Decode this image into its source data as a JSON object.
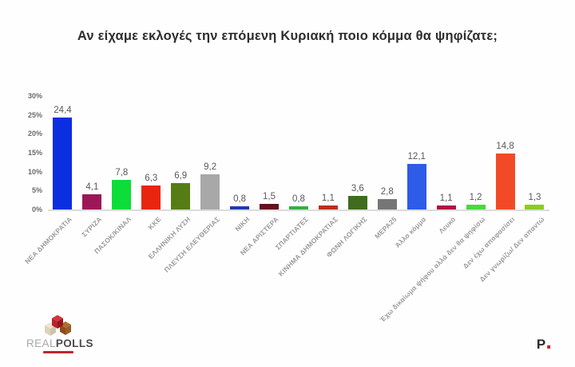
{
  "chart_data": {
    "type": "bar",
    "title": "Αν είχαμε εκλογές την επόμενη Κυριακή ποιο κόμμα θα ψηφίζατε;",
    "xlabel": "",
    "ylabel": "",
    "ylim": [
      0,
      30
    ],
    "grid": false,
    "legend": "none",
    "ytick_labels": [
      "0%",
      "5%",
      "10%",
      "15%",
      "20%",
      "25%",
      "30%"
    ],
    "categories": [
      "ΝΕΑ ΔΗΜΟΚΡΑΤΙΑ",
      "ΣΥΡΙΖΑ",
      "ΠΑΣΟΚ/ΚΙΝΑΛ",
      "ΚΚΕ",
      "ΕΛΛΗΝΙΚΗ ΛΥΣΗ",
      "ΠΛΕΥΣΗ ΕΛΕΥΘΕΡΙΑΣ",
      "ΝΙΚΗ",
      "ΝΕΑ ΑΡΙΣΤΕΡΑ",
      "ΣΠΑΡΤΙΑΤΕΣ",
      "ΚΙΝΗΜΑ ΔΗΜΟΚΡΑΤΙΑΣ",
      "ΦΩΝΗ ΛΟΓΙΚΗΣ",
      "ΜΕΡΑ25",
      "Άλλο κόμμα",
      "Λευκό",
      "Έχω δικαίωμα ψήφου αλλά δεν θα ψηφίσω",
      "Δεν έχω αποφασίσει",
      "Δεν γνωρίζω/ Δεν απαντώ"
    ],
    "values": [
      24.4,
      4.1,
      7.8,
      6.3,
      6.9,
      9.2,
      0.8,
      1.5,
      0.8,
      1.1,
      3.6,
      2.8,
      12.1,
      1.1,
      1.2,
      14.8,
      1.3
    ],
    "value_labels": [
      "24,4",
      "4,1",
      "7,8",
      "6,3",
      "6,9",
      "9,2",
      "0,8",
      "1,5",
      "0,8",
      "1,1",
      "3,6",
      "2,8",
      "12,1",
      "1,1",
      "1,2",
      "14,8",
      "1,3"
    ],
    "bar_colors": [
      "#0b2fe0",
      "#9c1757",
      "#0ddd38",
      "#e8250e",
      "#567d15",
      "#a8a8a8",
      "#2038b0",
      "#66101f",
      "#35ad45",
      "#bf2e1c",
      "#3f6d1d",
      "#767676",
      "#2e5be8",
      "#b01340",
      "#47d93c",
      "#f24a26",
      "#8ccc1f"
    ]
  },
  "branding": {
    "logo_real": "REAL",
    "logo_polls": "POLLS",
    "pronews_mark": {
      "letter": "P",
      "dot": "."
    },
    "logo_red": "#c0272d"
  }
}
